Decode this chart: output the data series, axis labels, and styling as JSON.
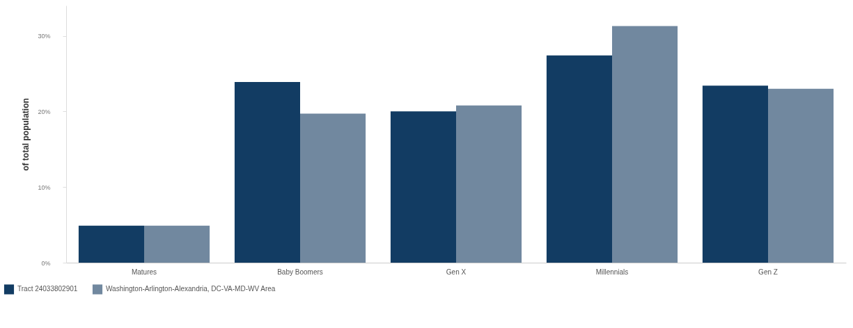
{
  "chart_data": {
    "type": "bar",
    "ylabel": "of total population",
    "categories": [
      "Matures",
      "Baby Boomers",
      "Gen X",
      "Millennials",
      "Gen Z"
    ],
    "series": [
      {
        "name": "Tract 24033802901",
        "color": "#123c63",
        "values": [
          4.9,
          23.9,
          20.0,
          27.4,
          23.4
        ]
      },
      {
        "name": "Washington-Arlington-Alexandria, DC-VA-MD-WV Area",
        "color": "#71889f",
        "values": [
          4.9,
          19.7,
          20.8,
          31.3,
          23.0
        ]
      }
    ],
    "ylim": [
      0,
      34
    ],
    "yticks": [
      {
        "value": 0,
        "label": "0%"
      },
      {
        "value": 10,
        "label": "10%"
      },
      {
        "value": 20,
        "label": "20%"
      },
      {
        "value": 30,
        "label": "30%"
      }
    ],
    "grid": false,
    "legend": "bottom left"
  }
}
